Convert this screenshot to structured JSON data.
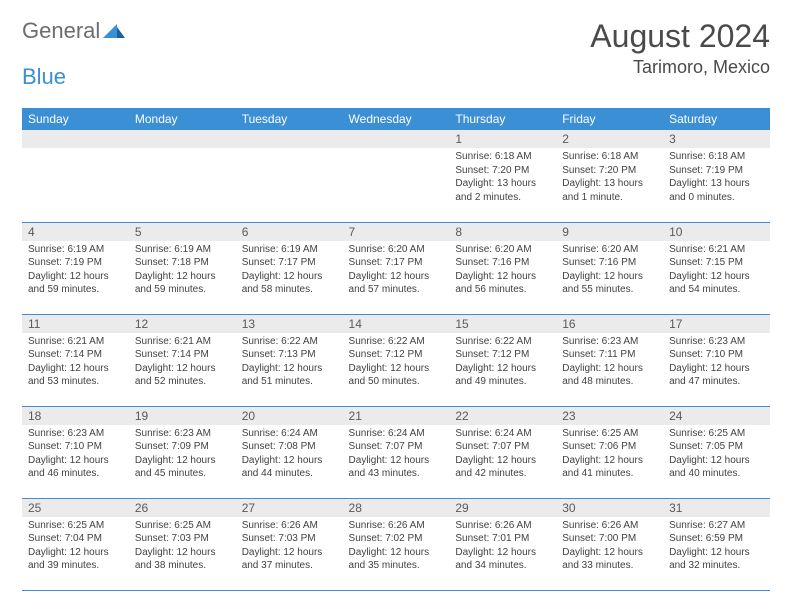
{
  "logo": {
    "part1": "General",
    "part2": "Blue"
  },
  "title": "August 2024",
  "location": "Tarimoro, Mexico",
  "dayHeaders": [
    "Sunday",
    "Monday",
    "Tuesday",
    "Wednesday",
    "Thursday",
    "Friday",
    "Saturday"
  ],
  "colors": {
    "headerBg": "#3b8fd4",
    "headerText": "#ffffff",
    "dayNumBg": "#ebebeb",
    "rowBorder": "#3b8fd4",
    "bodyText": "#424242",
    "titleText": "#4a4a4a",
    "logoGray": "#6d6d6d",
    "logoBlue": "#3b8fd4",
    "pageBg": "#ffffff"
  },
  "layout": {
    "widthPx": 792,
    "heightPx": 612,
    "columns": 7,
    "rows": 5,
    "cellFontSizePx": 10,
    "headerFontSizePx": 12,
    "titleFontSizePx": 32,
    "locationFontSizePx": 18
  },
  "weeks": [
    [
      null,
      null,
      null,
      null,
      {
        "num": "1",
        "sunrise": "Sunrise: 6:18 AM",
        "sunset": "Sunset: 7:20 PM",
        "day1": "Daylight: 13 hours",
        "day2": "and 2 minutes."
      },
      {
        "num": "2",
        "sunrise": "Sunrise: 6:18 AM",
        "sunset": "Sunset: 7:20 PM",
        "day1": "Daylight: 13 hours",
        "day2": "and 1 minute."
      },
      {
        "num": "3",
        "sunrise": "Sunrise: 6:18 AM",
        "sunset": "Sunset: 7:19 PM",
        "day1": "Daylight: 13 hours",
        "day2": "and 0 minutes."
      }
    ],
    [
      {
        "num": "4",
        "sunrise": "Sunrise: 6:19 AM",
        "sunset": "Sunset: 7:19 PM",
        "day1": "Daylight: 12 hours",
        "day2": "and 59 minutes."
      },
      {
        "num": "5",
        "sunrise": "Sunrise: 6:19 AM",
        "sunset": "Sunset: 7:18 PM",
        "day1": "Daylight: 12 hours",
        "day2": "and 59 minutes."
      },
      {
        "num": "6",
        "sunrise": "Sunrise: 6:19 AM",
        "sunset": "Sunset: 7:17 PM",
        "day1": "Daylight: 12 hours",
        "day2": "and 58 minutes."
      },
      {
        "num": "7",
        "sunrise": "Sunrise: 6:20 AM",
        "sunset": "Sunset: 7:17 PM",
        "day1": "Daylight: 12 hours",
        "day2": "and 57 minutes."
      },
      {
        "num": "8",
        "sunrise": "Sunrise: 6:20 AM",
        "sunset": "Sunset: 7:16 PM",
        "day1": "Daylight: 12 hours",
        "day2": "and 56 minutes."
      },
      {
        "num": "9",
        "sunrise": "Sunrise: 6:20 AM",
        "sunset": "Sunset: 7:16 PM",
        "day1": "Daylight: 12 hours",
        "day2": "and 55 minutes."
      },
      {
        "num": "10",
        "sunrise": "Sunrise: 6:21 AM",
        "sunset": "Sunset: 7:15 PM",
        "day1": "Daylight: 12 hours",
        "day2": "and 54 minutes."
      }
    ],
    [
      {
        "num": "11",
        "sunrise": "Sunrise: 6:21 AM",
        "sunset": "Sunset: 7:14 PM",
        "day1": "Daylight: 12 hours",
        "day2": "and 53 minutes."
      },
      {
        "num": "12",
        "sunrise": "Sunrise: 6:21 AM",
        "sunset": "Sunset: 7:14 PM",
        "day1": "Daylight: 12 hours",
        "day2": "and 52 minutes."
      },
      {
        "num": "13",
        "sunrise": "Sunrise: 6:22 AM",
        "sunset": "Sunset: 7:13 PM",
        "day1": "Daylight: 12 hours",
        "day2": "and 51 minutes."
      },
      {
        "num": "14",
        "sunrise": "Sunrise: 6:22 AM",
        "sunset": "Sunset: 7:12 PM",
        "day1": "Daylight: 12 hours",
        "day2": "and 50 minutes."
      },
      {
        "num": "15",
        "sunrise": "Sunrise: 6:22 AM",
        "sunset": "Sunset: 7:12 PM",
        "day1": "Daylight: 12 hours",
        "day2": "and 49 minutes."
      },
      {
        "num": "16",
        "sunrise": "Sunrise: 6:23 AM",
        "sunset": "Sunset: 7:11 PM",
        "day1": "Daylight: 12 hours",
        "day2": "and 48 minutes."
      },
      {
        "num": "17",
        "sunrise": "Sunrise: 6:23 AM",
        "sunset": "Sunset: 7:10 PM",
        "day1": "Daylight: 12 hours",
        "day2": "and 47 minutes."
      }
    ],
    [
      {
        "num": "18",
        "sunrise": "Sunrise: 6:23 AM",
        "sunset": "Sunset: 7:10 PM",
        "day1": "Daylight: 12 hours",
        "day2": "and 46 minutes."
      },
      {
        "num": "19",
        "sunrise": "Sunrise: 6:23 AM",
        "sunset": "Sunset: 7:09 PM",
        "day1": "Daylight: 12 hours",
        "day2": "and 45 minutes."
      },
      {
        "num": "20",
        "sunrise": "Sunrise: 6:24 AM",
        "sunset": "Sunset: 7:08 PM",
        "day1": "Daylight: 12 hours",
        "day2": "and 44 minutes."
      },
      {
        "num": "21",
        "sunrise": "Sunrise: 6:24 AM",
        "sunset": "Sunset: 7:07 PM",
        "day1": "Daylight: 12 hours",
        "day2": "and 43 minutes."
      },
      {
        "num": "22",
        "sunrise": "Sunrise: 6:24 AM",
        "sunset": "Sunset: 7:07 PM",
        "day1": "Daylight: 12 hours",
        "day2": "and 42 minutes."
      },
      {
        "num": "23",
        "sunrise": "Sunrise: 6:25 AM",
        "sunset": "Sunset: 7:06 PM",
        "day1": "Daylight: 12 hours",
        "day2": "and 41 minutes."
      },
      {
        "num": "24",
        "sunrise": "Sunrise: 6:25 AM",
        "sunset": "Sunset: 7:05 PM",
        "day1": "Daylight: 12 hours",
        "day2": "and 40 minutes."
      }
    ],
    [
      {
        "num": "25",
        "sunrise": "Sunrise: 6:25 AM",
        "sunset": "Sunset: 7:04 PM",
        "day1": "Daylight: 12 hours",
        "day2": "and 39 minutes."
      },
      {
        "num": "26",
        "sunrise": "Sunrise: 6:25 AM",
        "sunset": "Sunset: 7:03 PM",
        "day1": "Daylight: 12 hours",
        "day2": "and 38 minutes."
      },
      {
        "num": "27",
        "sunrise": "Sunrise: 6:26 AM",
        "sunset": "Sunset: 7:03 PM",
        "day1": "Daylight: 12 hours",
        "day2": "and 37 minutes."
      },
      {
        "num": "28",
        "sunrise": "Sunrise: 6:26 AM",
        "sunset": "Sunset: 7:02 PM",
        "day1": "Daylight: 12 hours",
        "day2": "and 35 minutes."
      },
      {
        "num": "29",
        "sunrise": "Sunrise: 6:26 AM",
        "sunset": "Sunset: 7:01 PM",
        "day1": "Daylight: 12 hours",
        "day2": "and 34 minutes."
      },
      {
        "num": "30",
        "sunrise": "Sunrise: 6:26 AM",
        "sunset": "Sunset: 7:00 PM",
        "day1": "Daylight: 12 hours",
        "day2": "and 33 minutes."
      },
      {
        "num": "31",
        "sunrise": "Sunrise: 6:27 AM",
        "sunset": "Sunset: 6:59 PM",
        "day1": "Daylight: 12 hours",
        "day2": "and 32 minutes."
      }
    ]
  ]
}
